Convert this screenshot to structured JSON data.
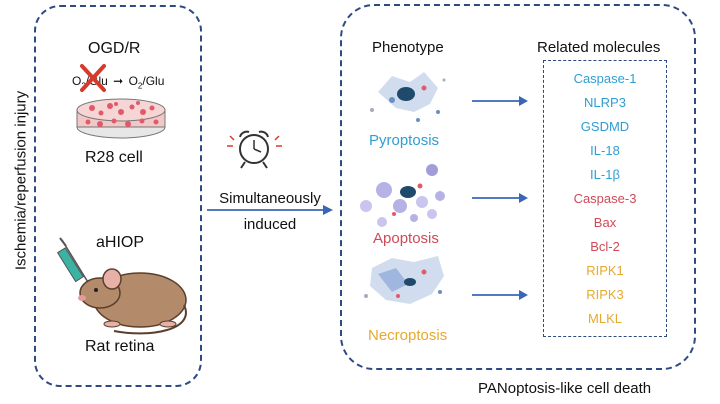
{
  "left": {
    "side_label": "Ischemia/reperfusion injury",
    "ogd_title": "OGD/R",
    "ogd_from": "O",
    "ogd_from_sub": "2",
    "ogd_from_tail": "/Glu",
    "ogd_to": "O",
    "ogd_to_sub": "2",
    "ogd_to_tail": "/Glu",
    "cell_label": "R28 cell",
    "ahiop_title": "aHIOP",
    "rat_label": "Rat retina"
  },
  "middle": {
    "line1": "Simultaneously",
    "line2": "induced"
  },
  "right": {
    "phenotype_header": "Phenotype",
    "molecules_header": "Related molecules",
    "phenotypes": [
      {
        "label": "Pyroptosis",
        "color": "#2f9ed2"
      },
      {
        "label": "Apoptosis",
        "color": "#cf4a57"
      },
      {
        "label": "Necroptosis",
        "color": "#e7a92f"
      }
    ],
    "molecules": [
      {
        "label": "Caspase-1",
        "color": "#2f9ed2"
      },
      {
        "label": "NLRP3",
        "color": "#2f9ed2"
      },
      {
        "label": "GSDMD",
        "color": "#2f9ed2"
      },
      {
        "label": "IL-18",
        "color": "#2f9ed2"
      },
      {
        "label": "IL-1β",
        "color": "#2f9ed2"
      },
      {
        "label": "Caspase-3",
        "color": "#cf4a57"
      },
      {
        "label": "Bax",
        "color": "#cf4a57"
      },
      {
        "label": "Bcl-2",
        "color": "#cf4a57"
      },
      {
        "label": "RIPK1",
        "color": "#e7a92f"
      },
      {
        "label": "RIPK3",
        "color": "#e7a92f"
      },
      {
        "label": "MLKL",
        "color": "#e7a92f"
      }
    ],
    "footer": "PANoptosis-like cell death"
  },
  "colors": {
    "frame": "#2e4a82",
    "arrow": "#3a67b5"
  }
}
